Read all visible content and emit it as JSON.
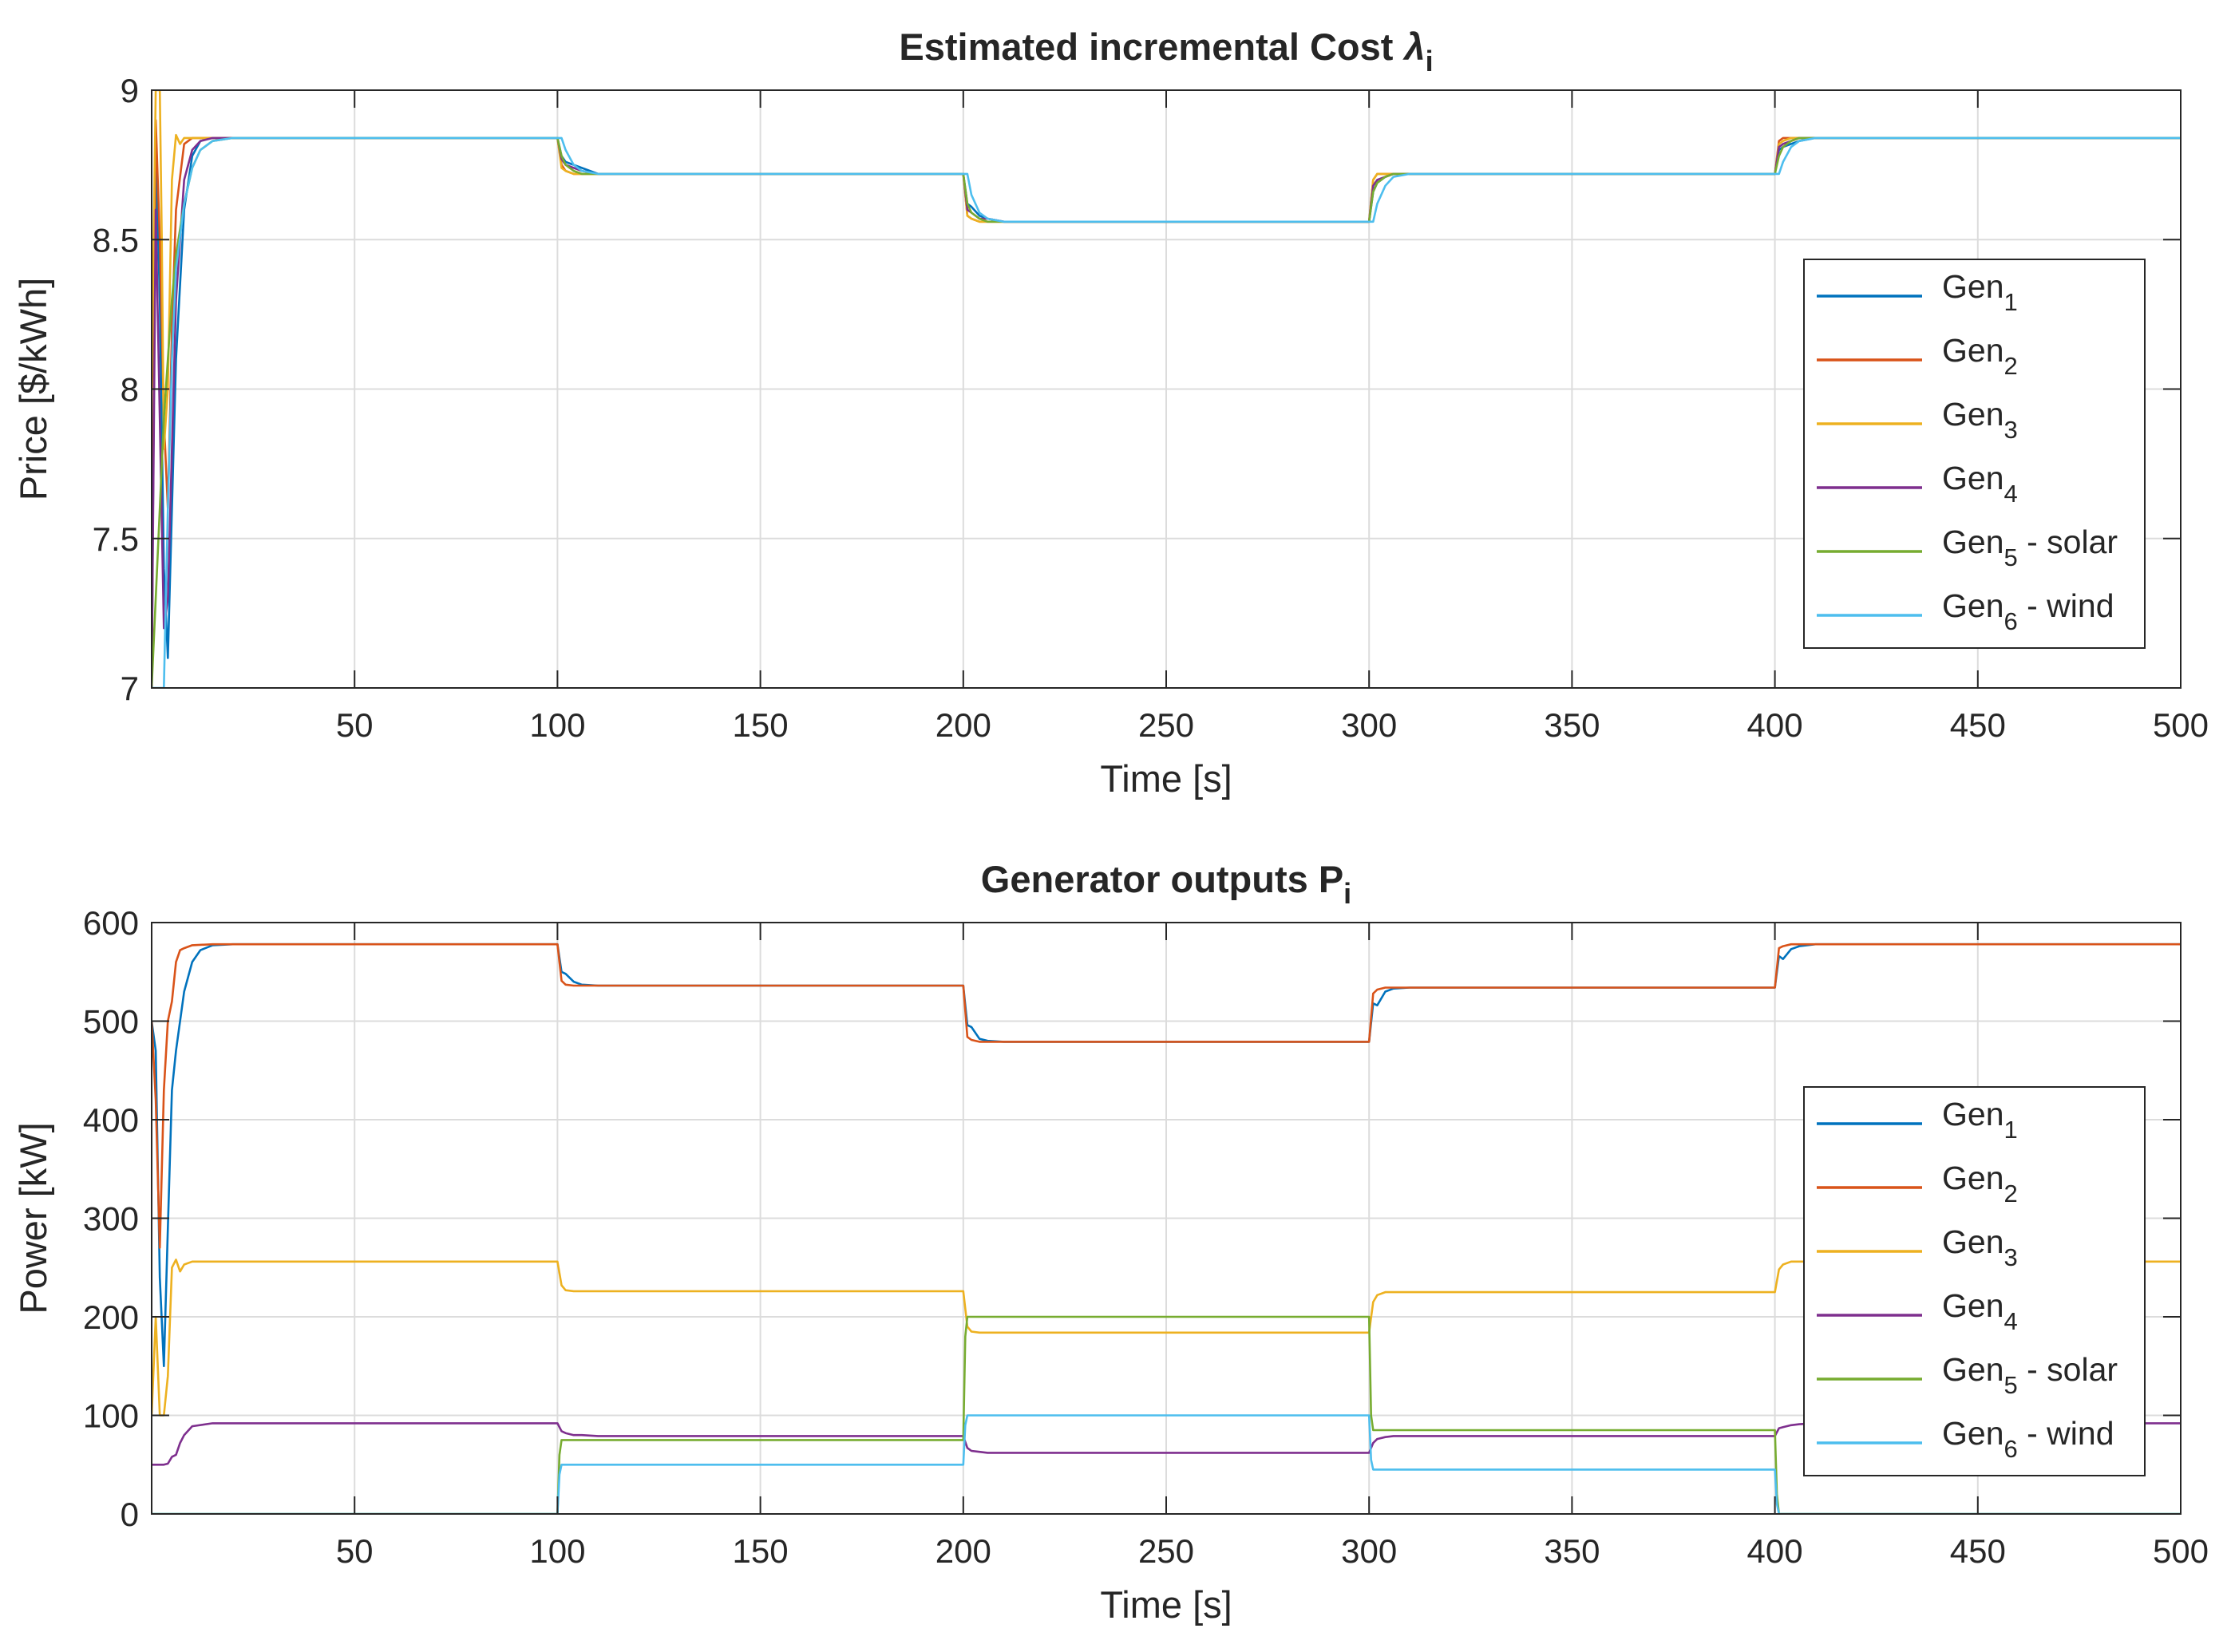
{
  "chart_data": [
    {
      "type": "line",
      "title": "Estimated incremental Cost",
      "title_symbol": "λ",
      "title_subscript": "i",
      "xlabel": "Time [s]",
      "ylabel": "Price [$/kWh]",
      "xlim": [
        0,
        500
      ],
      "ylim": [
        7,
        9
      ],
      "grid": true,
      "legend_position": "right",
      "xticks": [
        50,
        100,
        150,
        200,
        250,
        300,
        350,
        400,
        450,
        500
      ],
      "xtick_labels": [
        "50",
        "100",
        "150",
        "200",
        "250",
        "300",
        "350",
        "400",
        "450",
        "500"
      ],
      "yticks": [
        7,
        7.5,
        8,
        8.5,
        9
      ],
      "ytick_labels": [
        "7",
        "7.5",
        "8",
        "8.5",
        "9"
      ],
      "series": [
        {
          "name": "Gen",
          "sub": "1",
          "suffix": "",
          "color": "#0072BD",
          "x": [
            0,
            1,
            2,
            3,
            4,
            5,
            6,
            8,
            10,
            12,
            15,
            20,
            100,
            101,
            102,
            104,
            106,
            110,
            200,
            201,
            202,
            204,
            206,
            210,
            300,
            301,
            302,
            304,
            306,
            310,
            400,
            401,
            402,
            404,
            406,
            410,
            500
          ],
          "y": [
            7.0,
            8.8,
            8.3,
            7.4,
            7.1,
            7.6,
            8.1,
            8.6,
            8.78,
            8.83,
            8.84,
            8.84,
            8.84,
            8.78,
            8.76,
            8.75,
            8.74,
            8.72,
            8.72,
            8.62,
            8.61,
            8.58,
            8.57,
            8.56,
            8.56,
            8.66,
            8.69,
            8.71,
            8.72,
            8.72,
            8.72,
            8.8,
            8.81,
            8.82,
            8.83,
            8.84,
            8.84
          ]
        },
        {
          "name": "Gen",
          "sub": "2",
          "suffix": "",
          "color": "#D95319",
          "x": [
            0,
            1,
            2,
            3,
            4,
            5,
            6,
            8,
            10,
            12,
            15,
            20,
            100,
            101,
            102,
            104,
            106,
            110,
            200,
            201,
            202,
            204,
            206,
            210,
            300,
            301,
            302,
            304,
            306,
            310,
            400,
            401,
            402,
            404,
            406,
            410,
            500
          ],
          "y": [
            7.0,
            8.9,
            8.5,
            7.9,
            7.6,
            8.2,
            8.6,
            8.82,
            8.84,
            8.84,
            8.84,
            8.84,
            8.84,
            8.75,
            8.73,
            8.72,
            8.72,
            8.72,
            8.72,
            8.58,
            8.57,
            8.56,
            8.56,
            8.56,
            8.56,
            8.7,
            8.72,
            8.72,
            8.72,
            8.72,
            8.72,
            8.83,
            8.84,
            8.84,
            8.84,
            8.84,
            8.84
          ]
        },
        {
          "name": "Gen",
          "sub": "3",
          "suffix": "",
          "color": "#EDB120",
          "x": [
            0,
            1,
            2,
            2.5,
            3,
            4,
            5,
            6,
            7,
            8,
            10,
            12,
            15,
            20,
            100,
            101,
            102,
            104,
            106,
            110,
            200,
            201,
            202,
            204,
            206,
            210,
            300,
            301,
            302,
            304,
            306,
            310,
            400,
            401,
            402,
            404,
            406,
            410,
            500
          ],
          "y": [
            8.0,
            9.0,
            9.0,
            8.5,
            7.8,
            8.0,
            8.7,
            8.85,
            8.82,
            8.84,
            8.84,
            8.84,
            8.84,
            8.84,
            8.84,
            8.74,
            8.73,
            8.72,
            8.72,
            8.72,
            8.72,
            8.58,
            8.57,
            8.56,
            8.56,
            8.56,
            8.56,
            8.7,
            8.72,
            8.72,
            8.72,
            8.72,
            8.72,
            8.82,
            8.83,
            8.84,
            8.84,
            8.84,
            8.84
          ]
        },
        {
          "name": "Gen",
          "sub": "4",
          "suffix": "",
          "color": "#7E2F8E",
          "x": [
            0,
            1,
            2,
            3,
            4,
            5,
            6,
            8,
            10,
            12,
            15,
            20,
            100,
            101,
            102,
            104,
            106,
            110,
            200,
            201,
            202,
            204,
            206,
            210,
            300,
            301,
            302,
            304,
            306,
            310,
            400,
            401,
            402,
            404,
            406,
            410,
            500
          ],
          "y": [
            7.0,
            8.6,
            7.9,
            7.2,
            7.3,
            7.8,
            8.3,
            8.7,
            8.8,
            8.83,
            8.84,
            8.84,
            8.84,
            8.77,
            8.75,
            8.74,
            8.73,
            8.72,
            8.72,
            8.6,
            8.59,
            8.57,
            8.57,
            8.56,
            8.56,
            8.68,
            8.7,
            8.71,
            8.72,
            8.72,
            8.72,
            8.81,
            8.82,
            8.83,
            8.84,
            8.84,
            8.84
          ]
        },
        {
          "name": "Gen",
          "sub": "5",
          "suffix": " - solar",
          "color": "#77AC30",
          "x": [
            0,
            1,
            2,
            3,
            4,
            5,
            6,
            8,
            10,
            12,
            15,
            20,
            100,
            101,
            102,
            104,
            106,
            110,
            200,
            201,
            202,
            204,
            206,
            210,
            300,
            301,
            302,
            304,
            306,
            310,
            400,
            401,
            402,
            404,
            406,
            410,
            500
          ],
          "y": [
            7.0,
            7.3,
            7.6,
            7.9,
            8.1,
            8.3,
            8.45,
            8.62,
            8.74,
            8.8,
            8.83,
            8.84,
            8.84,
            8.78,
            8.75,
            8.73,
            8.72,
            8.72,
            8.72,
            8.62,
            8.59,
            8.57,
            8.56,
            8.56,
            8.56,
            8.66,
            8.69,
            8.71,
            8.72,
            8.72,
            8.72,
            8.78,
            8.81,
            8.83,
            8.84,
            8.84,
            8.84
          ]
        },
        {
          "name": "Gen",
          "sub": "6",
          "suffix": " - wind",
          "color": "#4DBEEE",
          "x": [
            0,
            2,
            3,
            4,
            5,
            6,
            8,
            10,
            12,
            15,
            20,
            100,
            101,
            102,
            104,
            106,
            110,
            200,
            201,
            202,
            204,
            206,
            210,
            300,
            301,
            302,
            304,
            306,
            310,
            400,
            401,
            402,
            404,
            406,
            410,
            500
          ],
          "y": [
            7.0,
            7.0,
            7.0,
            7.6,
            8.1,
            8.4,
            8.62,
            8.74,
            8.8,
            8.83,
            8.84,
            8.84,
            8.84,
            8.8,
            8.75,
            8.73,
            8.72,
            8.72,
            8.72,
            8.65,
            8.59,
            8.57,
            8.56,
            8.56,
            8.56,
            8.62,
            8.68,
            8.71,
            8.72,
            8.72,
            8.72,
            8.76,
            8.81,
            8.83,
            8.84,
            8.84
          ]
        }
      ]
    },
    {
      "type": "line",
      "title": "Generator outputs P",
      "title_subscript": "i",
      "xlabel": "Time [s]",
      "ylabel": "Power [kW]",
      "xlim": [
        0,
        500
      ],
      "ylim": [
        0,
        600
      ],
      "grid": true,
      "legend_position": "right",
      "xticks": [
        50,
        100,
        150,
        200,
        250,
        300,
        350,
        400,
        450,
        500
      ],
      "xtick_labels": [
        "50",
        "100",
        "150",
        "200",
        "250",
        "300",
        "350",
        "400",
        "450",
        "500"
      ],
      "yticks": [
        0,
        100,
        200,
        300,
        400,
        500,
        600
      ],
      "ytick_labels": [
        "0",
        "100",
        "200",
        "300",
        "400",
        "500",
        "600"
      ],
      "series": [
        {
          "name": "Gen",
          "sub": "1",
          "suffix": "",
          "color": "#0072BD",
          "x": [
            0,
            1,
            2,
            3,
            4,
            5,
            6,
            8,
            10,
            12,
            15,
            20,
            100,
            101,
            102,
            104,
            106,
            110,
            200,
            201,
            202,
            204,
            206,
            210,
            300,
            301,
            302,
            304,
            306,
            310,
            400,
            401,
            402,
            404,
            406,
            410,
            500
          ],
          "y": [
            500,
            470,
            240,
            150,
            290,
            430,
            470,
            530,
            560,
            572,
            577,
            578,
            578,
            550,
            548,
            540,
            537,
            536,
            536,
            496,
            494,
            482,
            480,
            479,
            479,
            518,
            516,
            530,
            533,
            534,
            534,
            566,
            563,
            573,
            576,
            578,
            578
          ]
        },
        {
          "name": "Gen",
          "sub": "2",
          "suffix": "",
          "color": "#D95319",
          "x": [
            0,
            1,
            2,
            3,
            4,
            5,
            6,
            7,
            8,
            10,
            15,
            20,
            100,
            101,
            102,
            104,
            106,
            110,
            200,
            201,
            202,
            204,
            206,
            210,
            300,
            301,
            302,
            304,
            306,
            310,
            400,
            401,
            402,
            404,
            406,
            410,
            500
          ],
          "y": [
            500,
            420,
            270,
            430,
            500,
            520,
            560,
            572,
            574,
            577,
            578,
            578,
            578,
            541,
            537,
            536,
            536,
            536,
            536,
            484,
            481,
            479,
            479,
            479,
            479,
            528,
            532,
            534,
            534,
            534,
            534,
            574,
            576,
            578,
            578,
            578,
            578
          ]
        },
        {
          "name": "Gen",
          "sub": "3",
          "suffix": "",
          "color": "#EDB120",
          "x": [
            0,
            1,
            2,
            3,
            4,
            5,
            6,
            7,
            8,
            10,
            15,
            20,
            100,
            101,
            102,
            104,
            106,
            110,
            200,
            201,
            202,
            204,
            206,
            210,
            300,
            301,
            302,
            304,
            306,
            310,
            400,
            401,
            402,
            404,
            406,
            410,
            500
          ],
          "y": [
            100,
            200,
            100,
            100,
            140,
            250,
            258,
            246,
            253,
            256,
            256,
            256,
            256,
            232,
            227,
            226,
            226,
            226,
            226,
            190,
            185,
            184,
            184,
            184,
            184,
            215,
            222,
            225,
            225,
            225,
            225,
            248,
            253,
            256,
            256,
            256,
            256
          ]
        },
        {
          "name": "Gen",
          "sub": "4",
          "suffix": "",
          "color": "#7E2F8E",
          "x": [
            0,
            3,
            4,
            5,
            6,
            7,
            8,
            10,
            15,
            20,
            100,
            101,
            102,
            104,
            106,
            110,
            200,
            201,
            202,
            204,
            206,
            210,
            300,
            301,
            302,
            304,
            306,
            310,
            400,
            401,
            402,
            404,
            406,
            410,
            500
          ],
          "y": [
            50,
            50,
            51,
            58,
            60,
            72,
            80,
            89,
            92,
            92,
            92,
            84,
            82,
            80,
            80,
            79,
            79,
            67,
            64,
            63,
            62,
            62,
            62,
            72,
            76,
            78,
            79,
            79,
            79,
            87,
            88,
            90,
            91,
            92,
            92
          ]
        },
        {
          "name": "Gen",
          "sub": "5",
          "suffix": " - solar",
          "color": "#77AC30",
          "x": [
            0,
            100,
            100.5,
            101,
            110,
            200,
            200.5,
            201,
            210,
            300,
            300.5,
            301,
            310,
            400,
            400.5,
            401,
            500
          ],
          "y": [
            0,
            0,
            60,
            75,
            75,
            75,
            180,
            200,
            200,
            200,
            100,
            85,
            85,
            85,
            20,
            0,
            0
          ]
        },
        {
          "name": "Gen",
          "sub": "6",
          "suffix": " - wind",
          "color": "#4DBEEE",
          "x": [
            0,
            100,
            100.5,
            101,
            110,
            200,
            200.5,
            201,
            210,
            300,
            300.5,
            301,
            310,
            400,
            400.5,
            401,
            500
          ],
          "y": [
            0,
            0,
            40,
            50,
            50,
            50,
            90,
            100,
            100,
            100,
            55,
            45,
            45,
            45,
            10,
            0,
            0
          ]
        }
      ]
    }
  ]
}
